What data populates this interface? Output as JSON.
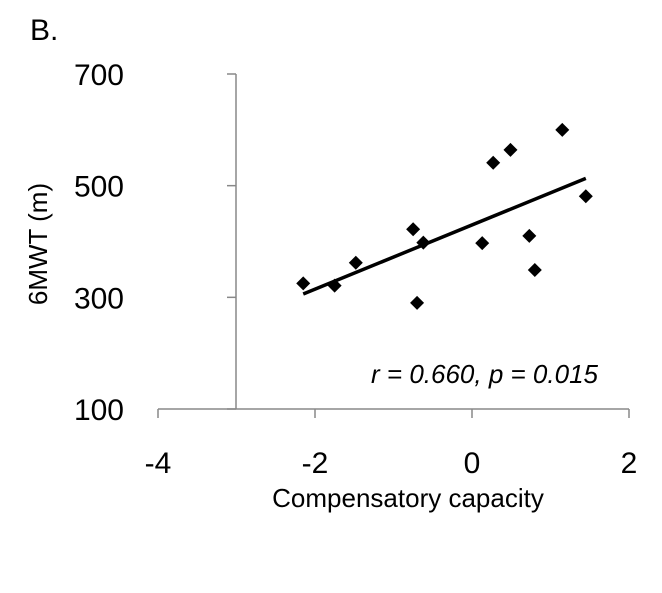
{
  "panel_label": "B.",
  "chart_data": {
    "type": "scatter",
    "xlabel": "Compensatory capacity",
    "ylabel": "6MWT (m)",
    "xlim": [
      -4,
      2
    ],
    "ylim": [
      100,
      700
    ],
    "x_ticks": [
      -4,
      -2,
      0,
      2
    ],
    "y_ticks": [
      100,
      300,
      500,
      700
    ],
    "x_tick_labels": [
      "-4",
      "-2",
      "0",
      "2"
    ],
    "y_tick_labels": [
      "100",
      "300",
      "500",
      "700"
    ],
    "points": [
      {
        "x": -2.15,
        "y": 325
      },
      {
        "x": -1.75,
        "y": 321
      },
      {
        "x": -1.48,
        "y": 362
      },
      {
        "x": -0.75,
        "y": 422
      },
      {
        "x": -0.7,
        "y": 290
      },
      {
        "x": -0.62,
        "y": 398
      },
      {
        "x": 0.13,
        "y": 397
      },
      {
        "x": 0.27,
        "y": 541
      },
      {
        "x": 0.49,
        "y": 564
      },
      {
        "x": 0.73,
        "y": 410
      },
      {
        "x": 0.8,
        "y": 349
      },
      {
        "x": 1.15,
        "y": 600
      },
      {
        "x": 1.45,
        "y": 481
      }
    ],
    "trendline": {
      "x": [
        -2.15,
        1.45
      ],
      "y": [
        306,
        513
      ]
    },
    "annotation": "r = 0.660, p = 0.015",
    "grid": false,
    "legend": "none",
    "marker_color": "#000000"
  }
}
